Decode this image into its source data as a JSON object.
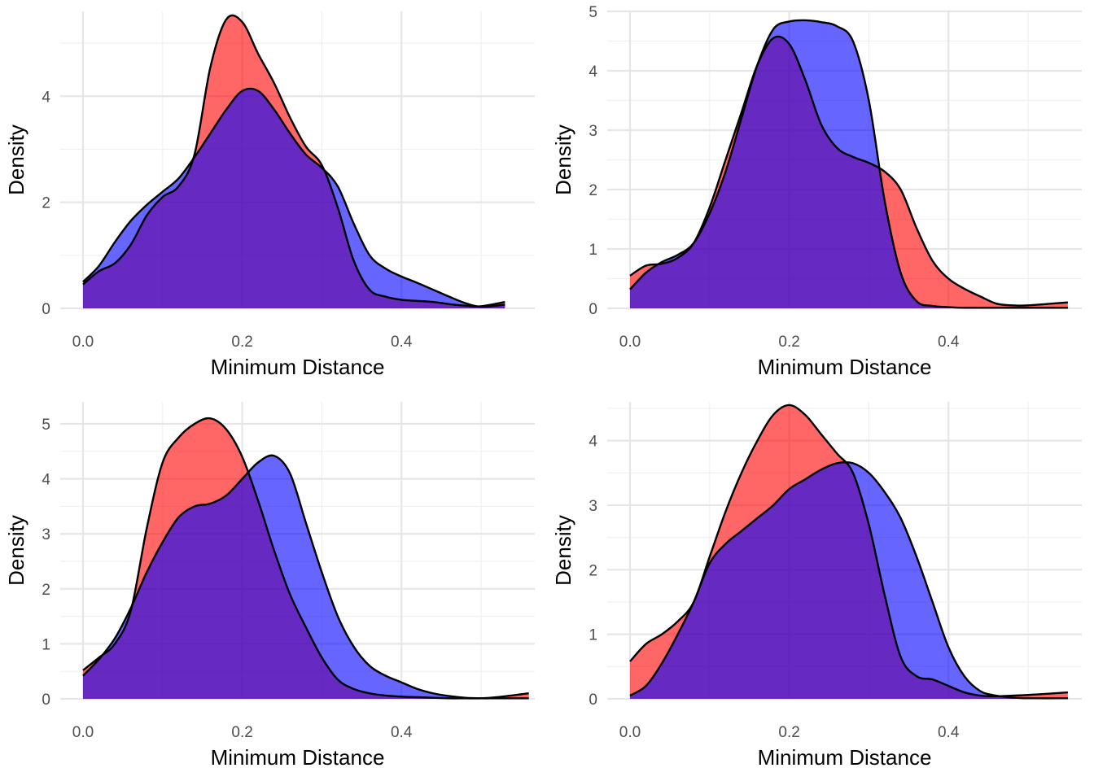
{
  "colors": {
    "red_fill": "#ff0000",
    "blue_fill": "#0000ff",
    "fill_opacity": 0.6,
    "outline": "#000000",
    "line_red": "#cc0000",
    "line_blue": "#0000cc"
  },
  "chart_data": [
    {
      "type": "area",
      "xlabel": "Minimum Distance",
      "ylabel": "Density",
      "xlim": [
        0,
        0.53
      ],
      "ylim": [
        0,
        5.6
      ],
      "xticks": [
        0.0,
        0.2,
        0.4
      ],
      "xtick_labels": [
        "0.0",
        "0.2",
        "0.4"
      ],
      "yticks": [
        0,
        2,
        4
      ],
      "ytick_labels": [
        "0",
        "2",
        "4"
      ],
      "grid": true,
      "series": [
        {
          "color": "red",
          "x": [
            0,
            0.02,
            0.04,
            0.06,
            0.08,
            0.1,
            0.12,
            0.14,
            0.16,
            0.18,
            0.2,
            0.22,
            0.24,
            0.26,
            0.28,
            0.3,
            0.32,
            0.34,
            0.36,
            0.38,
            0.4,
            0.42,
            0.44,
            0.46,
            0.48,
            0.5,
            0.53
          ],
          "values": [
            0.45,
            0.7,
            0.85,
            1.2,
            1.75,
            2.1,
            2.3,
            2.9,
            4.55,
            5.45,
            5.4,
            4.8,
            4.25,
            3.6,
            3.05,
            2.7,
            1.9,
            0.9,
            0.35,
            0.22,
            0.16,
            0.14,
            0.12,
            0.08,
            0.05,
            0.04,
            0.12
          ]
        },
        {
          "color": "blue",
          "x": [
            0,
            0.02,
            0.04,
            0.06,
            0.08,
            0.1,
            0.12,
            0.14,
            0.16,
            0.18,
            0.2,
            0.22,
            0.24,
            0.26,
            0.28,
            0.3,
            0.32,
            0.34,
            0.36,
            0.38,
            0.4,
            0.42,
            0.44,
            0.46,
            0.48,
            0.5,
            0.53
          ],
          "values": [
            0.5,
            0.8,
            1.25,
            1.65,
            1.95,
            2.2,
            2.45,
            2.85,
            3.3,
            3.75,
            4.1,
            4.1,
            3.75,
            3.3,
            2.9,
            2.65,
            2.3,
            1.6,
            1.0,
            0.75,
            0.6,
            0.48,
            0.35,
            0.22,
            0.1,
            0.03,
            0.07
          ]
        }
      ]
    },
    {
      "type": "area",
      "xlabel": "Minimum Distance",
      "ylabel": "Density",
      "xlim": [
        0,
        0.55
      ],
      "ylim": [
        0,
        5
      ],
      "xticks": [
        0.0,
        0.2,
        0.4
      ],
      "xtick_labels": [
        "0.0",
        "0.2",
        "0.4"
      ],
      "yticks": [
        0,
        1,
        2,
        3,
        4,
        5
      ],
      "ytick_labels": [
        "0",
        "1",
        "2",
        "3",
        "4",
        "5"
      ],
      "grid": true,
      "series": [
        {
          "color": "red",
          "x": [
            0,
            0.02,
            0.04,
            0.06,
            0.08,
            0.1,
            0.12,
            0.14,
            0.16,
            0.18,
            0.2,
            0.22,
            0.24,
            0.26,
            0.28,
            0.3,
            0.32,
            0.34,
            0.36,
            0.38,
            0.4,
            0.42,
            0.44,
            0.46,
            0.48,
            0.5,
            0.55
          ],
          "values": [
            0.55,
            0.72,
            0.75,
            0.85,
            1.1,
            1.7,
            2.5,
            3.3,
            4.1,
            4.55,
            4.45,
            3.85,
            3.1,
            2.7,
            2.55,
            2.45,
            2.3,
            2.0,
            1.35,
            0.8,
            0.5,
            0.33,
            0.2,
            0.08,
            0.05,
            0.05,
            0.1
          ]
        },
        {
          "color": "blue",
          "x": [
            0,
            0.02,
            0.04,
            0.06,
            0.08,
            0.1,
            0.12,
            0.14,
            0.16,
            0.18,
            0.2,
            0.22,
            0.24,
            0.26,
            0.28,
            0.3,
            0.32,
            0.34,
            0.36,
            0.38,
            0.4,
            0.42,
            0.44,
            0.46,
            0.48,
            0.5,
            0.55
          ],
          "values": [
            0.32,
            0.6,
            0.78,
            0.9,
            1.1,
            1.6,
            2.3,
            3.2,
            4.1,
            4.7,
            4.83,
            4.85,
            4.82,
            4.75,
            4.5,
            3.5,
            1.8,
            0.6,
            0.12,
            0.04,
            0.02,
            0.01,
            0.01,
            0.01,
            0.01,
            0.01,
            0.01
          ]
        }
      ]
    },
    {
      "type": "area",
      "xlabel": "Minimum Distance",
      "ylabel": "Density",
      "xlim": [
        0,
        0.56
      ],
      "ylim": [
        0,
        5.4
      ],
      "xticks": [
        0.0,
        0.2,
        0.4
      ],
      "xtick_labels": [
        "0.0",
        "0.2",
        "0.4"
      ],
      "yticks": [
        0,
        1,
        2,
        3,
        4,
        5
      ],
      "ytick_labels": [
        "0",
        "1",
        "2",
        "3",
        "4",
        "5"
      ],
      "grid": true,
      "series": [
        {
          "color": "red",
          "x": [
            0,
            0.02,
            0.04,
            0.06,
            0.08,
            0.1,
            0.12,
            0.14,
            0.16,
            0.18,
            0.2,
            0.22,
            0.24,
            0.26,
            0.28,
            0.3,
            0.32,
            0.34,
            0.36,
            0.38,
            0.4,
            0.42,
            0.44,
            0.46,
            0.48,
            0.5,
            0.52,
            0.56
          ],
          "values": [
            0.52,
            0.75,
            1.0,
            1.6,
            3.1,
            4.3,
            4.75,
            5.0,
            5.1,
            4.9,
            4.4,
            3.6,
            2.7,
            1.9,
            1.3,
            0.75,
            0.35,
            0.18,
            0.1,
            0.06,
            0.04,
            0.03,
            0.02,
            0.01,
            0.01,
            0.01,
            0.03,
            0.1
          ]
        },
        {
          "color": "blue",
          "x": [
            0,
            0.02,
            0.04,
            0.06,
            0.08,
            0.1,
            0.12,
            0.14,
            0.16,
            0.18,
            0.2,
            0.22,
            0.24,
            0.26,
            0.28,
            0.3,
            0.32,
            0.34,
            0.36,
            0.38,
            0.4,
            0.42,
            0.44,
            0.46,
            0.48,
            0.5,
            0.52,
            0.56
          ],
          "values": [
            0.42,
            0.72,
            1.1,
            1.65,
            2.3,
            2.85,
            3.3,
            3.5,
            3.55,
            3.7,
            4.0,
            4.3,
            4.42,
            4.1,
            3.2,
            2.3,
            1.5,
            0.95,
            0.6,
            0.42,
            0.3,
            0.18,
            0.1,
            0.05,
            0.02,
            0.01,
            0.01,
            0.01
          ]
        }
      ]
    },
    {
      "type": "area",
      "xlabel": "Minimum Distance",
      "ylabel": "Density",
      "xlim": [
        0,
        0.55
      ],
      "ylim": [
        0,
        4.6
      ],
      "xticks": [
        0.0,
        0.2,
        0.4
      ],
      "xtick_labels": [
        "0.0",
        "0.2",
        "0.4"
      ],
      "yticks": [
        0,
        1,
        2,
        3,
        4
      ],
      "ytick_labels": [
        "0",
        "1",
        "2",
        "3",
        "4"
      ],
      "grid": true,
      "series": [
        {
          "color": "red",
          "x": [
            0,
            0.02,
            0.04,
            0.06,
            0.08,
            0.1,
            0.12,
            0.14,
            0.16,
            0.18,
            0.2,
            0.22,
            0.24,
            0.26,
            0.28,
            0.3,
            0.32,
            0.34,
            0.36,
            0.38,
            0.4,
            0.42,
            0.44,
            0.46,
            0.48,
            0.5,
            0.55
          ],
          "values": [
            0.58,
            0.85,
            1.0,
            1.2,
            1.5,
            2.2,
            2.9,
            3.5,
            4.0,
            4.4,
            4.55,
            4.4,
            4.1,
            3.8,
            3.5,
            2.7,
            1.6,
            0.65,
            0.35,
            0.3,
            0.2,
            0.1,
            0.05,
            0.04,
            0.05,
            0.06,
            0.1
          ]
        },
        {
          "color": "blue",
          "x": [
            0,
            0.02,
            0.04,
            0.06,
            0.08,
            0.1,
            0.12,
            0.14,
            0.16,
            0.18,
            0.2,
            0.22,
            0.24,
            0.26,
            0.28,
            0.3,
            0.32,
            0.34,
            0.36,
            0.38,
            0.4,
            0.42,
            0.44,
            0.46,
            0.48,
            0.5,
            0.55
          ],
          "values": [
            0.05,
            0.2,
            0.55,
            1.0,
            1.5,
            2.1,
            2.4,
            2.6,
            2.8,
            3.0,
            3.25,
            3.4,
            3.55,
            3.65,
            3.65,
            3.5,
            3.2,
            2.8,
            2.2,
            1.5,
            0.8,
            0.35,
            0.12,
            0.05,
            0.02,
            0.01,
            0.01
          ]
        }
      ]
    }
  ]
}
